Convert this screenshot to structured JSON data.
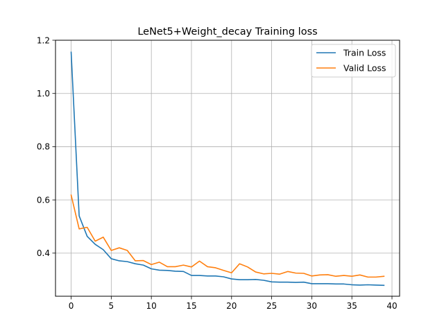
{
  "chart_data": {
    "type": "line",
    "title": "LeNet5+Weight_decay Training loss",
    "xlabel": "",
    "ylabel": "",
    "xlim": [
      -1.95,
      40.95
    ],
    "ylim": [
      0.238,
      1.2
    ],
    "grid": true,
    "legend_position": "top-right",
    "x_ticks": [
      0,
      5,
      10,
      15,
      20,
      25,
      30,
      35,
      40
    ],
    "y_ticks": [
      0.4,
      0.6,
      0.8,
      1.0,
      1.2
    ],
    "x_tick_labels": [
      "0",
      "5",
      "10",
      "15",
      "20",
      "25",
      "30",
      "35",
      "40"
    ],
    "y_tick_labels": [
      "0.4",
      "0.6",
      "0.8",
      "1.0",
      "1.2"
    ],
    "x": [
      0,
      1,
      2,
      3,
      4,
      5,
      6,
      7,
      8,
      9,
      10,
      11,
      12,
      13,
      14,
      15,
      16,
      17,
      18,
      19,
      20,
      21,
      22,
      23,
      24,
      25,
      26,
      27,
      28,
      29,
      30,
      31,
      32,
      33,
      34,
      35,
      36,
      37,
      38,
      39
    ],
    "series": [
      {
        "name": "Train Loss",
        "color": "#1f77b4",
        "values": [
          1.155,
          0.54,
          0.463,
          0.433,
          0.413,
          0.379,
          0.371,
          0.368,
          0.36,
          0.355,
          0.341,
          0.336,
          0.335,
          0.332,
          0.331,
          0.316,
          0.316,
          0.314,
          0.314,
          0.311,
          0.303,
          0.3,
          0.3,
          0.301,
          0.298,
          0.292,
          0.291,
          0.291,
          0.29,
          0.291,
          0.285,
          0.285,
          0.285,
          0.284,
          0.284,
          0.281,
          0.28,
          0.281,
          0.28,
          0.279
        ]
      },
      {
        "name": "Valid Loss",
        "color": "#ff7f0e",
        "values": [
          0.618,
          0.491,
          0.497,
          0.445,
          0.46,
          0.41,
          0.42,
          0.41,
          0.371,
          0.372,
          0.357,
          0.366,
          0.349,
          0.349,
          0.355,
          0.348,
          0.37,
          0.349,
          0.345,
          0.335,
          0.326,
          0.36,
          0.348,
          0.329,
          0.322,
          0.324,
          0.321,
          0.331,
          0.325,
          0.324,
          0.314,
          0.318,
          0.319,
          0.313,
          0.316,
          0.313,
          0.318,
          0.31,
          0.31,
          0.313
        ]
      }
    ]
  }
}
